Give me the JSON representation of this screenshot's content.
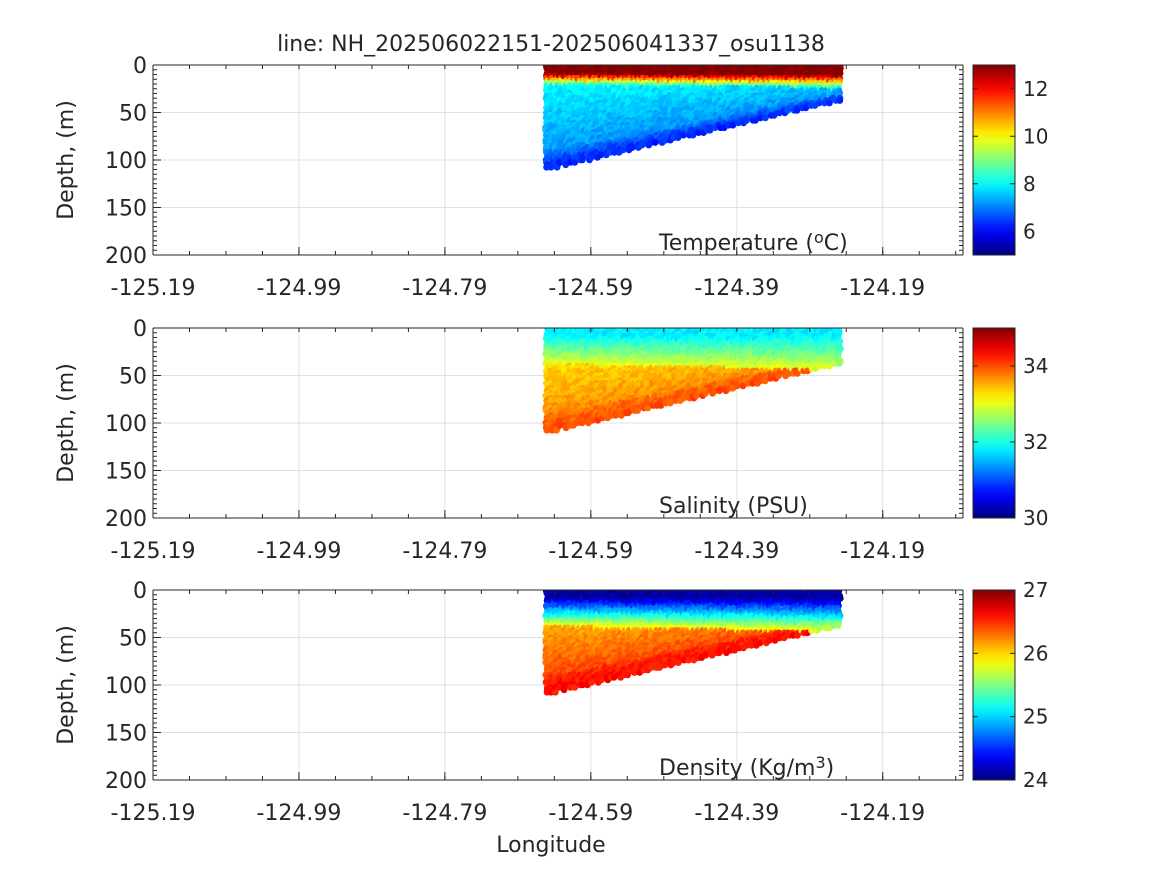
{
  "figure": {
    "title": "line: NH_202506022151-202506041337_osu1138",
    "xlabel": "Longitude"
  },
  "chart_data": [
    {
      "type": "scatter",
      "title": "line: NH_202506022151-202506041337_osu1138",
      "label": "Temperature (°C)",
      "label_parts": [
        "Temperature (",
        "o",
        "C)"
      ],
      "label_super_index": 1,
      "ylabel": "Depth, (m)",
      "xlabel": "",
      "x_ticks": [
        "-125.19",
        "-124.99",
        "-124.79",
        "-124.59",
        "-124.39",
        "-124.19"
      ],
      "xlim": [
        -125.19,
        -124.08
      ],
      "ylim": [
        0,
        200
      ],
      "y_reversed": true,
      "y_ticks": [
        "0",
        "50",
        "100",
        "150",
        "200"
      ],
      "grid": true,
      "colormap": "jet",
      "clim": [
        5,
        13
      ],
      "colorbar_ticks": [
        "6",
        "8",
        "10",
        "12"
      ],
      "section": {
        "lon_west": -124.65,
        "lon_east": -124.25,
        "bottom_west": 110,
        "bottom_east": 38,
        "notch_lon": -124.46
      },
      "profile": {
        "surface": 13.0,
        "mixed_depth": 12,
        "thermocline_depth": 25,
        "below": 8.2,
        "deep": 7.0,
        "bottom": 6.2
      }
    },
    {
      "type": "scatter",
      "label": "Salinity (PSU)",
      "label_parts": [
        "Salinity (PSU)"
      ],
      "label_super_index": -1,
      "ylabel": "Depth, (m)",
      "xlabel": "",
      "x_ticks": [
        "-125.19",
        "-124.99",
        "-124.79",
        "-124.59",
        "-124.39",
        "-124.19"
      ],
      "xlim": [
        -125.19,
        -124.08
      ],
      "ylim": [
        0,
        200
      ],
      "y_reversed": true,
      "y_ticks": [
        "0",
        "50",
        "100",
        "150",
        "200"
      ],
      "grid": true,
      "colormap": "jet",
      "clim": [
        30,
        35
      ],
      "colorbar_ticks": [
        "30",
        "32",
        "34"
      ],
      "section": {
        "lon_west": -124.65,
        "lon_east": -124.25,
        "bottom_west": 110,
        "bottom_east": 38,
        "notch_lon": -124.46
      },
      "profile": {
        "surface": 31.8,
        "mixed_depth": 10,
        "thermocline_depth": 45,
        "below": 33.0,
        "deep": 33.8,
        "bottom": 34.0
      }
    },
    {
      "type": "scatter",
      "label": "Density (Kg/m3)",
      "label_parts": [
        "Density (Kg/m",
        "3",
        ")"
      ],
      "label_super_index": 1,
      "ylabel": "Depth, (m)",
      "xlabel": "Longitude",
      "x_ticks": [
        "-125.19",
        "-124.99",
        "-124.79",
        "-124.59",
        "-124.39",
        "-124.19"
      ],
      "xlim": [
        -125.19,
        -124.08
      ],
      "ylim": [
        0,
        200
      ],
      "y_reversed": true,
      "y_ticks": [
        "0",
        "50",
        "100",
        "150",
        "200"
      ],
      "grid": true,
      "colormap": "jet",
      "clim": [
        24,
        27
      ],
      "colorbar_ticks": [
        "24",
        "25",
        "26",
        "27"
      ],
      "section": {
        "lon_west": -124.65,
        "lon_east": -124.25,
        "bottom_west": 110,
        "bottom_east": 38,
        "notch_lon": -124.46
      },
      "profile": {
        "surface": 24.1,
        "mixed_depth": 10,
        "thermocline_depth": 45,
        "below": 25.9,
        "deep": 26.5,
        "bottom": 26.6
      }
    }
  ]
}
